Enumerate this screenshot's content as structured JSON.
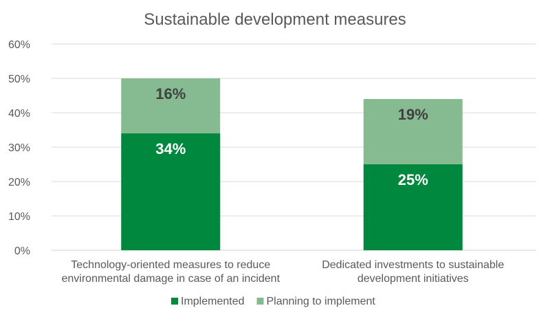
{
  "chart_data": {
    "type": "bar",
    "stacked": true,
    "title": "Sustainable development measures",
    "xlabel": "",
    "ylabel": "",
    "ylim": [
      0,
      60
    ],
    "yticks": [
      "0%",
      "10%",
      "20%",
      "30%",
      "40%",
      "50%",
      "60%"
    ],
    "grid": true,
    "legend_position": "bottom",
    "categories": [
      [
        "Technology-oriented measures to reduce",
        "environmental damage in case of an incident"
      ],
      [
        "Dedicated investments to sustainable",
        "development initiatives"
      ]
    ],
    "series": [
      {
        "name": "Implemented",
        "color": "#00883E",
        "label_color": "#FFFFFF",
        "values": [
          34,
          25
        ],
        "labels": [
          "34%",
          "25%"
        ]
      },
      {
        "name": "Planning to implement",
        "color": "#86BB91",
        "label_color": "#404040",
        "values": [
          16,
          19
        ],
        "labels": [
          "16%",
          "19%"
        ]
      }
    ]
  }
}
